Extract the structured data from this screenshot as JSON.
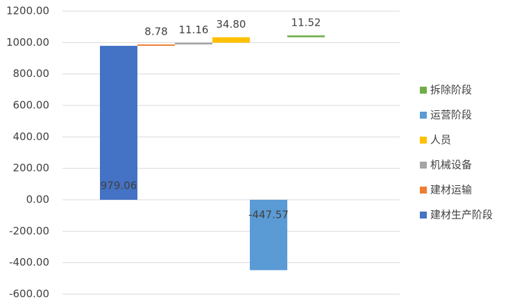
{
  "chart_data": {
    "type": "waterfall",
    "categories": [
      null,
      null,
      null,
      null,
      null,
      null,
      null,
      null,
      null
    ],
    "series": [
      {
        "name": "建材生产阶段",
        "color": "#4472c4",
        "values": [
          null,
          979.06,
          null,
          null,
          null,
          null,
          null,
          null,
          null
        ],
        "value_labels": [
          null,
          "979.06",
          null,
          null,
          null,
          null,
          null,
          null,
          null
        ]
      },
      {
        "name": "建材运输",
        "color": "#ed7d31",
        "values": [
          null,
          null,
          8.78,
          null,
          null,
          null,
          null,
          null,
          null
        ],
        "value_labels": [
          null,
          null,
          "8.78",
          null,
          null,
          null,
          null,
          null,
          null
        ]
      },
      {
        "name": "机械设备",
        "color": "#a5a5a5",
        "values": [
          null,
          null,
          null,
          11.16,
          null,
          null,
          null,
          null,
          null
        ],
        "value_labels": [
          null,
          null,
          null,
          "11.16",
          null,
          null,
          null,
          null,
          null
        ]
      },
      {
        "name": "人员",
        "color": "#ffc000",
        "values": [
          null,
          null,
          null,
          null,
          34.8,
          null,
          null,
          null,
          null
        ],
        "value_labels": [
          null,
          null,
          null,
          null,
          "34.80",
          null,
          null,
          null,
          null
        ]
      },
      {
        "name": "运营阶段",
        "color": "#5b9bd5",
        "values": [
          null,
          null,
          null,
          null,
          null,
          -447.57,
          null,
          null,
          null
        ],
        "value_labels": [
          null,
          null,
          null,
          null,
          null,
          "-447.57",
          null,
          null,
          null
        ]
      },
      {
        "name": "拆除阶段",
        "color": "#70ad47",
        "values": [
          null,
          null,
          null,
          null,
          null,
          null,
          11.52,
          null,
          null
        ],
        "value_labels": [
          null,
          null,
          null,
          null,
          null,
          null,
          "11.52",
          null,
          null
        ]
      }
    ],
    "ylim": [
      -600,
      1200
    ],
    "yticks": [
      {
        "value": -600,
        "label": "-600.00"
      },
      {
        "value": -400,
        "label": "-400.00"
      },
      {
        "value": -200,
        "label": "-200.00"
      },
      {
        "value": 0,
        "label": "0.00"
      },
      {
        "value": 200,
        "label": "200.00"
      },
      {
        "value": 400,
        "label": "400.00"
      },
      {
        "value": 600,
        "label": "600.00"
      },
      {
        "value": 800,
        "label": "800.00"
      },
      {
        "value": 1000,
        "label": "1000.00"
      },
      {
        "value": 1200,
        "label": "1200.00"
      }
    ],
    "grid": true
  }
}
